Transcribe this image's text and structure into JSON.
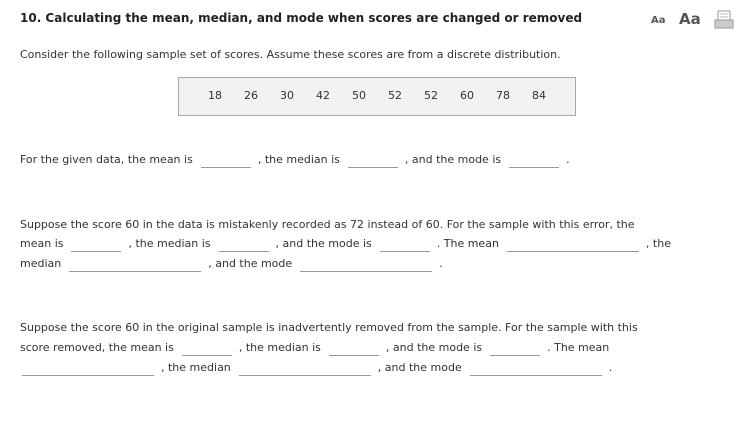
{
  "header": {
    "title": "10. Calculating the mean, median, and mode when scores are changed or removed",
    "font_small": "Aa",
    "font_large": "Aa"
  },
  "intro": "Consider the following sample set of scores. Assume these scores are from a discrete distribution.",
  "scores": [
    18,
    26,
    30,
    42,
    50,
    52,
    52,
    60,
    78,
    84
  ],
  "questions": [
    {
      "segments": [
        "For the given data, the mean is",
        ", the median is",
        ", and the mode is",
        "."
      ]
    },
    {
      "segments": [
        "Suppose the score 60 in the data is mistakenly recorded as 72 instead of 60. For the sample with this error, the",
        "mean is",
        ", the median is",
        ", and the mode is",
        ". The mean",
        ", the",
        "median",
        ", and the mode",
        "."
      ]
    },
    {
      "segments": [
        "Suppose the score 60 in the original sample is inadvertently removed from the sample. For the sample with this",
        "score removed, the mean is",
        ", the median is",
        ", and the mode is",
        ". The mean",
        ", the median",
        ", and the mode",
        "."
      ]
    }
  ]
}
